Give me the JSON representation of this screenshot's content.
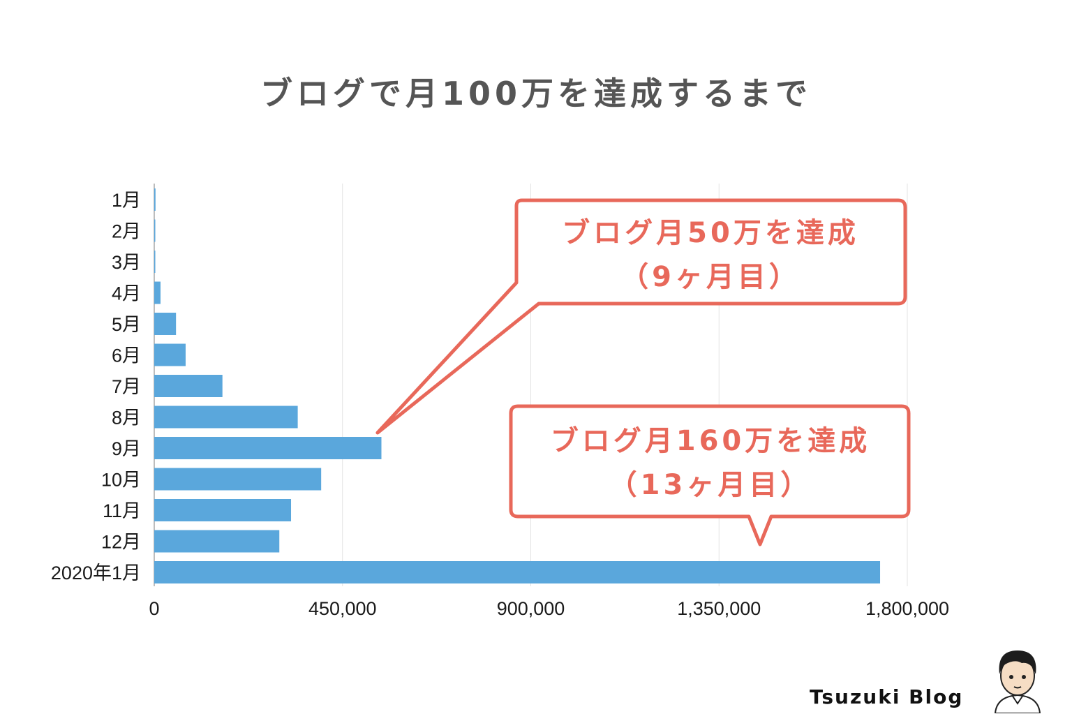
{
  "title": "ブログで月100万を達成するまで",
  "brand": "Tsuzuki Blog",
  "colors": {
    "bar": "#5aa7dc",
    "callout": "#e8685a",
    "grid": "#e3e3e3",
    "title": "#555555"
  },
  "chart_data": {
    "type": "bar",
    "orientation": "horizontal",
    "title": "ブログで月100万を達成するまで",
    "categories": [
      "1月",
      "2月",
      "3月",
      "4月",
      "5月",
      "6月",
      "7月",
      "8月",
      "9月",
      "10月",
      "11月",
      "12月",
      "2020年1月"
    ],
    "values": [
      3000,
      2000,
      1000,
      15000,
      52000,
      75000,
      163000,
      343000,
      543000,
      399000,
      327000,
      299000,
      1735000
    ],
    "xlim": [
      0,
      1800000
    ],
    "xticks": [
      "0",
      "450,000",
      "900,000",
      "1,350,000",
      "1,800,000"
    ],
    "xtick_values": [
      0,
      450000,
      900000,
      1350000,
      1800000
    ],
    "grid": true,
    "annotations": [
      {
        "line1": "ブログ月50万を達成",
        "line2": "（9ヶ月目）",
        "target_category": "9月"
      },
      {
        "line1": "ブログ月160万を達成",
        "line2": "（13ヶ月目）",
        "target_category": "2020年1月"
      }
    ]
  }
}
